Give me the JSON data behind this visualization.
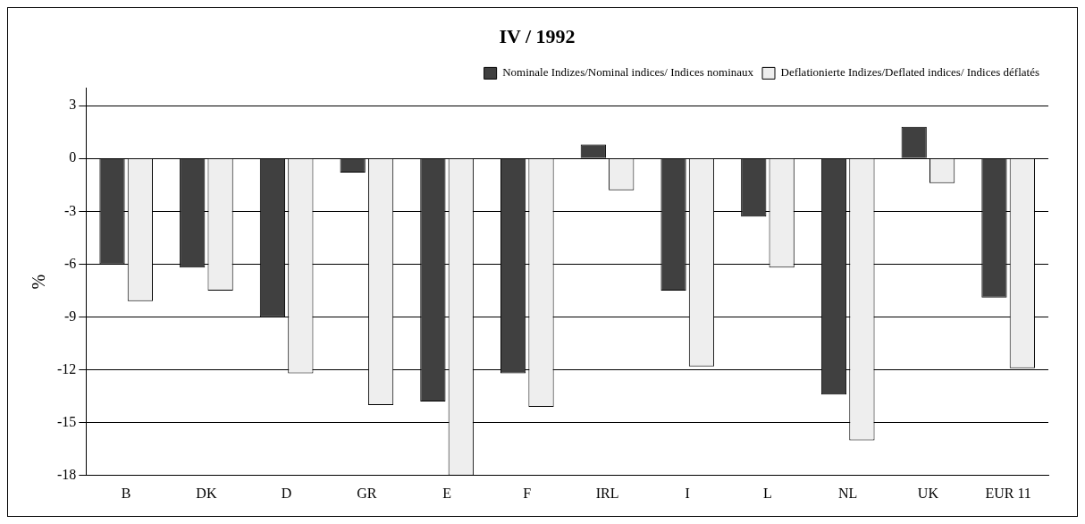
{
  "chart_data": {
    "type": "bar",
    "title": "IV / 1992",
    "ylabel": "%",
    "categories": [
      "B",
      "DK",
      "D",
      "GR",
      "E",
      "F",
      "IRL",
      "I",
      "L",
      "NL",
      "UK",
      "EUR 11"
    ],
    "series": [
      {
        "name": "Nominale Indizes/Nominal indices/ Indices nominaux",
        "color": "#404040",
        "values": [
          -6.0,
          -6.2,
          -9.0,
          -0.8,
          -13.8,
          -12.2,
          0.8,
          -7.5,
          -3.3,
          -13.4,
          1.8,
          -7.9
        ]
      },
      {
        "name": "Deflationierte Indizes/Deflated indices/ Indices déflatés",
        "color": "#eeeeee",
        "values": [
          -8.1,
          -7.5,
          -12.2,
          -14.0,
          -18.0,
          -14.1,
          -1.8,
          -11.8,
          -6.2,
          -16.0,
          -1.4,
          -11.9
        ]
      }
    ],
    "ylim": [
      -18,
      4
    ],
    "yticks": [
      -18,
      -15,
      -12,
      -9,
      -6,
      -3,
      0,
      3
    ],
    "grid": "y",
    "legend": "top right"
  }
}
